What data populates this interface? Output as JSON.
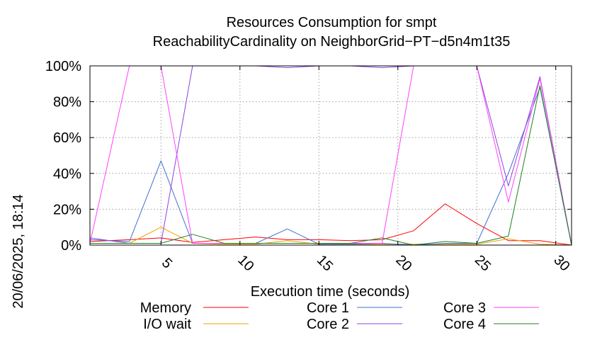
{
  "chart_data": {
    "type": "line",
    "title": "Resources Consumption for smpt",
    "subtitle": "ReachabilityCardinality on NeighborGrid−PT−d5n4m1t35",
    "xlabel": "Execution time (seconds)",
    "ylabel": "",
    "side_stamp": "20/06/2025, 18:14",
    "xlim": [
      0.5,
      31
    ],
    "ylim": [
      0,
      100
    ],
    "xticks": [
      5,
      10,
      15,
      20,
      25,
      30
    ],
    "yticks": [
      0,
      20,
      40,
      60,
      80,
      100
    ],
    "ytick_labels": [
      "0%",
      "20%",
      "40%",
      "60%",
      "80%",
      "100%"
    ],
    "grid": true,
    "legend_position": "bottom",
    "series": [
      {
        "name": "Memory",
        "color": "#ff0000",
        "x": [
          0.5,
          3,
          5,
          7,
          9,
          11,
          13,
          15,
          17,
          19,
          21,
          23,
          25,
          27,
          29,
          31
        ],
        "y": [
          2,
          3,
          4,
          1.5,
          3,
          4.5,
          3,
          3,
          2.5,
          3,
          8,
          23,
          12,
          2.5,
          2.5,
          0
        ]
      },
      {
        "name": "I/O wait",
        "color": "#f0a000",
        "x": [
          0.5,
          3,
          5,
          7,
          9,
          11,
          13,
          15,
          17,
          19,
          21,
          23,
          25,
          27,
          29,
          31
        ],
        "y": [
          1,
          1,
          10,
          1,
          0.5,
          0.5,
          2.5,
          0.5,
          0.5,
          0.5,
          0.5,
          0.5,
          0.5,
          3.5,
          0.5,
          0
        ]
      },
      {
        "name": "Core 1",
        "color": "#4070d0",
        "x": [
          0.5,
          3,
          5,
          7,
          9,
          11,
          13,
          15,
          17,
          19,
          21,
          23,
          25,
          27,
          29,
          31
        ],
        "y": [
          3,
          2,
          47,
          1,
          1,
          1,
          9,
          0.5,
          0.5,
          1,
          0,
          1,
          1,
          40,
          88,
          0
        ]
      },
      {
        "name": "Core 2",
        "color": "#9040e0",
        "x": [
          0.5,
          3,
          5,
          7,
          9,
          11,
          13,
          15,
          17,
          19,
          21,
          23,
          25,
          27,
          29,
          31
        ],
        "y": [
          4,
          1,
          1,
          100,
          100,
          100,
          99,
          100,
          100,
          99,
          100,
          100,
          100,
          33,
          94,
          0
        ]
      },
      {
        "name": "Core 3",
        "color": "#ff40ff",
        "x": [
          0.5,
          3,
          5,
          7,
          9,
          11,
          13,
          15,
          17,
          19,
          21,
          23,
          25,
          27,
          29,
          31
        ],
        "y": [
          1,
          100,
          100,
          1,
          1,
          1,
          1,
          1,
          1,
          1,
          100,
          100,
          100,
          24,
          93,
          0
        ]
      },
      {
        "name": "Core 4",
        "color": "#208020",
        "x": [
          0.5,
          3,
          5,
          7,
          9,
          11,
          13,
          15,
          17,
          19,
          21,
          23,
          25,
          27,
          29,
          31
        ],
        "y": [
          1,
          1,
          1,
          6,
          1,
          1,
          1,
          1,
          1,
          4,
          0,
          2,
          1,
          5,
          89,
          0
        ]
      }
    ]
  }
}
